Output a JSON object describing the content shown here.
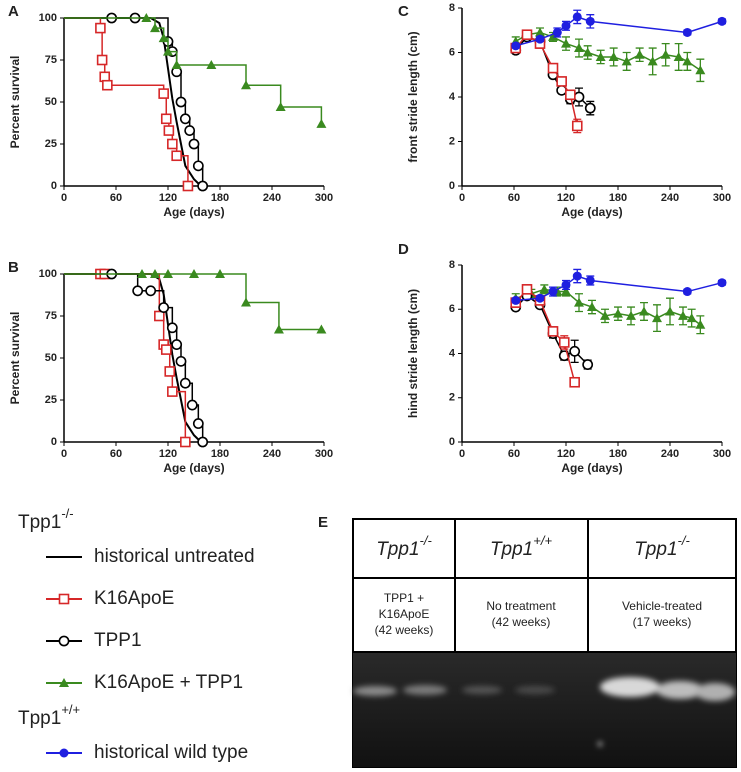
{
  "chart_data": [
    {
      "type": "survival",
      "panel": "A",
      "xlabel": "Age (days)",
      "ylabel": "Percent survival",
      "xlim": [
        0,
        300
      ],
      "ylim": [
        0,
        100
      ],
      "xticks": [
        0,
        60,
        120,
        180,
        240,
        300
      ],
      "yticks": [
        0,
        25,
        50,
        75,
        100
      ],
      "series": [
        {
          "color": "#000000",
          "marker": null,
          "step": false,
          "x": [
            0,
            100,
            110,
            115,
            120,
            125,
            130,
            135,
            140,
            150,
            158
          ],
          "values": [
            100,
            100,
            97,
            88,
            70,
            52,
            38,
            25,
            12,
            4,
            0
          ]
        },
        {
          "color": "#d62728",
          "marker": "square",
          "step": true,
          "x": [
            0,
            42,
            44,
            47,
            50,
            115,
            118,
            121,
            125,
            130,
            143
          ],
          "values": [
            100,
            94,
            75,
            65,
            60,
            55,
            40,
            33,
            25,
            18,
            0
          ]
        },
        {
          "color": "#000000",
          "marker": "circle",
          "step": true,
          "x": [
            0,
            55,
            82,
            120,
            125,
            130,
            135,
            140,
            145,
            150,
            155,
            160
          ],
          "values": [
            100,
            100,
            100,
            86,
            80,
            68,
            50,
            40,
            33,
            25,
            12,
            0
          ]
        },
        {
          "color": "#3a8a1f",
          "marker": "triangle",
          "step": true,
          "x": [
            0,
            95,
            105,
            115,
            120,
            130,
            170,
            210,
            250,
            297
          ],
          "values": [
            100,
            100,
            94,
            88,
            80,
            72,
            72,
            60,
            47,
            37
          ]
        }
      ]
    },
    {
      "type": "survival",
      "panel": "B",
      "xlabel": "Age (days)",
      "ylabel": "Percent survival",
      "xlim": [
        0,
        300
      ],
      "ylim": [
        0,
        100
      ],
      "xticks": [
        0,
        60,
        120,
        180,
        240,
        300
      ],
      "yticks": [
        0,
        25,
        50,
        75,
        100
      ],
      "series": [
        {
          "color": "#000000",
          "marker": null,
          "step": false,
          "x": [
            0,
            100,
            110,
            115,
            120,
            125,
            130,
            135,
            140,
            150,
            158
          ],
          "values": [
            100,
            100,
            97,
            88,
            70,
            52,
            38,
            25,
            12,
            4,
            0
          ]
        },
        {
          "color": "#d62728",
          "marker": "square",
          "step": true,
          "x": [
            0,
            42,
            47,
            110,
            115,
            118,
            122,
            125,
            140
          ],
          "values": [
            100,
            100,
            100,
            75,
            58,
            55,
            42,
            30,
            0
          ]
        },
        {
          "color": "#000000",
          "marker": "circle",
          "step": true,
          "x": [
            0,
            55,
            85,
            100,
            115,
            125,
            130,
            135,
            140,
            148,
            155,
            160
          ],
          "values": [
            100,
            100,
            90,
            90,
            80,
            68,
            58,
            48,
            35,
            22,
            11,
            0
          ]
        },
        {
          "color": "#3a8a1f",
          "marker": "triangle",
          "step": true,
          "x": [
            0,
            90,
            105,
            120,
            150,
            180,
            210,
            248,
            297
          ],
          "values": [
            100,
            100,
            100,
            100,
            100,
            100,
            83,
            67,
            67
          ]
        }
      ]
    },
    {
      "type": "line",
      "panel": "C",
      "xlabel": "Age (days)",
      "ylabel": "front stride length (cm)",
      "xlim": [
        0,
        300
      ],
      "ylim": [
        0,
        8
      ],
      "xticks": [
        0,
        60,
        120,
        180,
        240,
        300
      ],
      "yticks": [
        0,
        2,
        4,
        6,
        8
      ],
      "series": [
        {
          "color": "#3a8a1f",
          "marker": "triangle",
          "x": [
            62,
            75,
            90,
            105,
            120,
            135,
            145,
            160,
            175,
            190,
            205,
            220,
            235,
            250,
            260,
            275
          ],
          "values": [
            6.5,
            6.8,
            6.9,
            6.7,
            6.4,
            6.2,
            6.0,
            5.8,
            5.8,
            5.6,
            5.9,
            5.6,
            5.9,
            5.8,
            5.6,
            5.2
          ],
          "errors": [
            0.2,
            0.2,
            0.2,
            0.2,
            0.3,
            0.4,
            0.3,
            0.3,
            0.4,
            0.4,
            0.3,
            0.6,
            0.5,
            0.6,
            0.4,
            0.5
          ]
        },
        {
          "color": "#000000",
          "marker": "circle",
          "x": [
            62,
            75,
            90,
            105,
            115,
            125,
            135,
            148
          ],
          "values": [
            6.1,
            6.7,
            6.5,
            5.0,
            4.3,
            3.9,
            4.0,
            3.5
          ],
          "errors": [
            0.1,
            0.1,
            0.1,
            0.1,
            0.1,
            0.2,
            0.4,
            0.3
          ]
        },
        {
          "color": "#d62728",
          "marker": "square",
          "x": [
            62,
            75,
            90,
            105,
            115,
            125,
            133
          ],
          "values": [
            6.2,
            6.8,
            6.4,
            5.3,
            4.7,
            4.1,
            2.7
          ],
          "errors": [
            0.2,
            0.2,
            0.2,
            0.2,
            0.2,
            0.2,
            0.3
          ]
        },
        {
          "color": "#1f1fe0",
          "marker": "dot",
          "x": [
            62,
            90,
            110,
            120,
            133,
            148,
            260,
            300
          ],
          "values": [
            6.3,
            6.6,
            6.9,
            7.2,
            7.6,
            7.4,
            6.9,
            7.4
          ],
          "errors": [
            0.1,
            0.1,
            0.2,
            0.2,
            0.3,
            0.3,
            0.1,
            0.1
          ]
        }
      ]
    },
    {
      "type": "line",
      "panel": "D",
      "xlabel": "Age (days)",
      "ylabel": "hind stride length (cm)",
      "xlim": [
        0,
        300
      ],
      "ylim": [
        0,
        8
      ],
      "xticks": [
        0,
        60,
        120,
        180,
        240,
        300
      ],
      "yticks": [
        0,
        2,
        4,
        6,
        8
      ],
      "series": [
        {
          "color": "#3a8a1f",
          "marker": "triangle",
          "x": [
            62,
            80,
            95,
            110,
            120,
            135,
            150,
            165,
            180,
            195,
            210,
            225,
            240,
            255,
            265,
            275
          ],
          "values": [
            6.5,
            6.7,
            6.9,
            6.8,
            6.8,
            6.3,
            6.1,
            5.7,
            5.8,
            5.7,
            5.9,
            5.6,
            5.9,
            5.7,
            5.6,
            5.3
          ],
          "errors": [
            0.2,
            0.2,
            0.2,
            0.2,
            0.2,
            0.4,
            0.3,
            0.3,
            0.3,
            0.4,
            0.4,
            0.6,
            0.6,
            0.4,
            0.4,
            0.4
          ]
        },
        {
          "color": "#000000",
          "marker": "circle",
          "x": [
            62,
            75,
            90,
            105,
            118,
            130,
            145
          ],
          "values": [
            6.1,
            6.6,
            6.2,
            4.9,
            3.9,
            4.1,
            3.5
          ],
          "errors": [
            0.1,
            0.1,
            0.1,
            0.2,
            0.2,
            0.5,
            0.2
          ]
        },
        {
          "color": "#d62728",
          "marker": "square",
          "x": [
            62,
            75,
            90,
            105,
            118,
            130
          ],
          "values": [
            6.3,
            6.9,
            6.4,
            5.0,
            4.5,
            2.7
          ],
          "errors": [
            0.2,
            0.2,
            0.2,
            0.2,
            0.3,
            0.2
          ]
        },
        {
          "color": "#1f1fe0",
          "marker": "dot",
          "x": [
            62,
            90,
            105,
            120,
            133,
            148,
            260,
            300
          ],
          "values": [
            6.4,
            6.5,
            6.8,
            7.1,
            7.5,
            7.3,
            6.8,
            7.2
          ],
          "errors": [
            0.1,
            0.1,
            0.2,
            0.2,
            0.3,
            0.2,
            0.1,
            0.1
          ]
        }
      ]
    }
  ],
  "legend": {
    "groups": [
      {
        "genotype": {
          "base": "Tpp1",
          "sup": "-/-"
        },
        "entries": [
          {
            "name": "historical untreated",
            "color": "#000000",
            "marker": null
          },
          {
            "name": "K16ApoE",
            "color": "#d62728",
            "marker": "square"
          },
          {
            "name": "TPP1",
            "color": "#000000",
            "marker": "circle"
          },
          {
            "name": "K16ApoE + TPP1",
            "color": "#3a8a1f",
            "marker": "triangle"
          }
        ]
      },
      {
        "genotype": {
          "base": "Tpp1",
          "sup": "+/+"
        },
        "entries": [
          {
            "name": "historical wild type",
            "color": "#1f1fe0",
            "marker": "dot"
          }
        ]
      }
    ]
  },
  "gel": {
    "panel": "E",
    "columns": [
      {
        "genotype": {
          "base": "Tpp1",
          "sup": "-/-"
        },
        "treatment": [
          "TPP1 +",
          "K16ApoE",
          "(42 weeks)"
        ]
      },
      {
        "genotype": {
          "base": "Tpp1",
          "sup": "+/+"
        },
        "treatment": [
          "No treatment",
          "(42 weeks)"
        ]
      },
      {
        "genotype": {
          "base": "Tpp1",
          "sup": "-/-"
        },
        "treatment": [
          "Vehicle-treated",
          "(17 weeks)"
        ]
      }
    ]
  }
}
